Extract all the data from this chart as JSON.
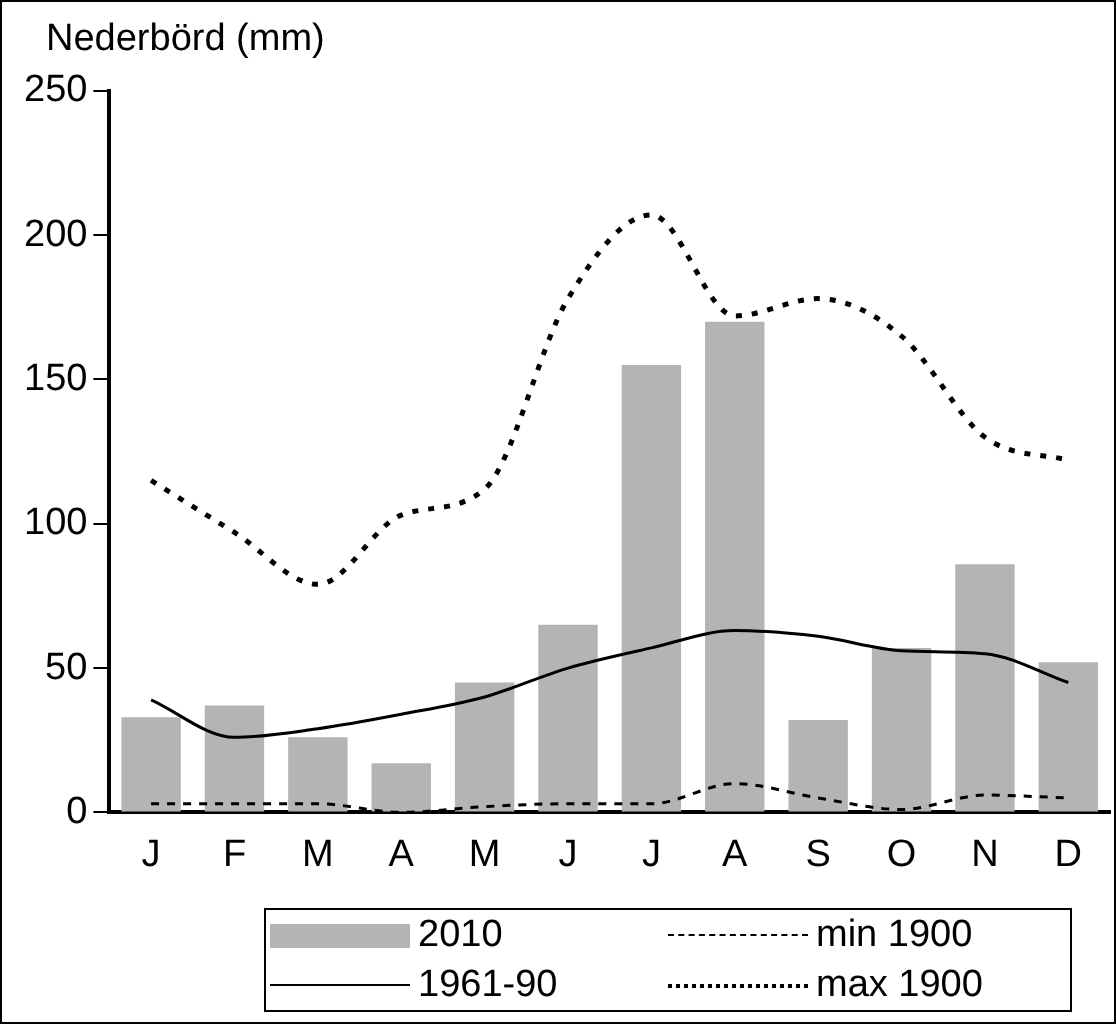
{
  "chart_data": {
    "type": "bar",
    "ylabel": "Nederbörd (mm)",
    "categories": [
      "J",
      "F",
      "M",
      "A",
      "M",
      "J",
      "J",
      "A",
      "S",
      "O",
      "N",
      "D"
    ],
    "series": [
      {
        "name": "2010",
        "color": "#b4b4b4",
        "values": [
          33,
          37,
          26,
          17,
          45,
          65,
          155,
          170,
          32,
          57,
          86,
          52
        ]
      },
      {
        "name": "1961-90",
        "type": "line",
        "color": "#000000",
        "line_style": "solid",
        "values": [
          39,
          26,
          29,
          34,
          40,
          50,
          57,
          63,
          61,
          56,
          55,
          45
        ]
      },
      {
        "name": "min 1900",
        "type": "line",
        "color": "#000000",
        "line_style": "dashed",
        "values": [
          3,
          3,
          3,
          0,
          2,
          3,
          3,
          10,
          5,
          1,
          6,
          5
        ]
      },
      {
        "name": "max 1900",
        "type": "line",
        "color": "#000000",
        "line_style": "dotted",
        "values": [
          115,
          97,
          79,
          103,
          112,
          178,
          207,
          172,
          178,
          165,
          130,
          122
        ]
      }
    ],
    "ylim": [
      0,
      250
    ],
    "yticks": [
      0,
      50,
      100,
      150,
      200,
      250
    ],
    "grid": false,
    "legend": "bottom",
    "marker": "none"
  }
}
